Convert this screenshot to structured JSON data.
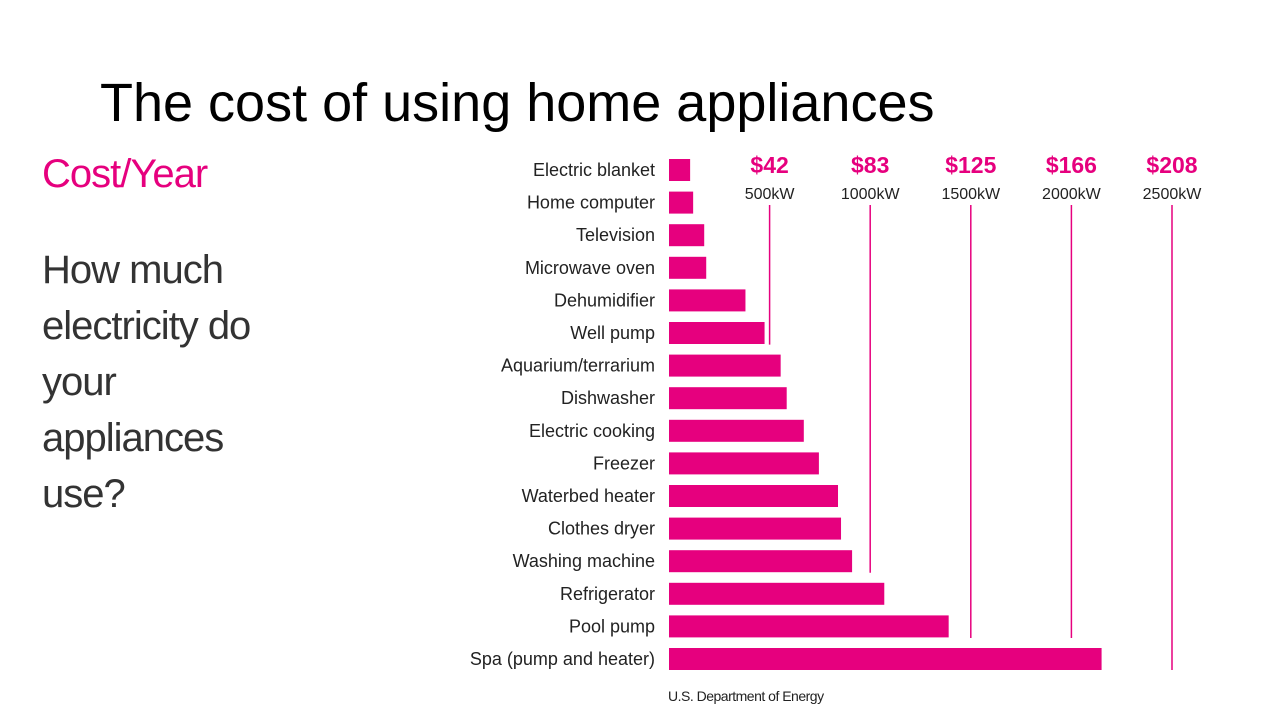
{
  "slide": {
    "title": "The cost of using home appliances",
    "cost_year_label": "Cost/Year",
    "question": "How much electricity do your appliances use?",
    "source": "U.S. Department of Energy"
  },
  "colors": {
    "bar": "#e6007e",
    "gridline": "#e6007e"
  },
  "chart_data": {
    "type": "bar",
    "orientation": "horizontal",
    "title": "",
    "xlabel": "",
    "ylabel": "",
    "categories": [
      "Electric blanket",
      "Home computer",
      "Television",
      "Microwave oven",
      "Dehumidifier",
      "Well pump",
      "Aquarium/terrarium",
      "Dishwasher",
      "Electric cooking",
      "Freezer",
      "Waterbed heater",
      "Clothes dryer",
      "Washing machine",
      "Refrigerator",
      "Pool pump",
      "Spa (pump and heater)"
    ],
    "values": [
      105,
      120,
      175,
      185,
      380,
      475,
      555,
      585,
      670,
      745,
      840,
      855,
      910,
      1070,
      1390,
      2150
    ],
    "value_unit": "kW",
    "xlim": [
      0,
      2500
    ],
    "ticks": [
      {
        "value": 500,
        "cost_label": "$42",
        "kw_label": "500kW"
      },
      {
        "value": 1000,
        "cost_label": "$83",
        "kw_label": "1000kW"
      },
      {
        "value": 1500,
        "cost_label": "$125",
        "kw_label": "1500kW"
      },
      {
        "value": 2000,
        "cost_label": "$166",
        "kw_label": "2000kW"
      },
      {
        "value": 2500,
        "cost_label": "$208",
        "kw_label": "2500kW"
      }
    ]
  }
}
